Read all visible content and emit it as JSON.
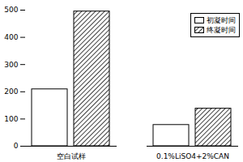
{
  "chart_data": {
    "type": "bar",
    "categories": [
      "空白试样",
      "0.1%LiSO4+2%CAN"
    ],
    "series": [
      {
        "name": "初凝时间",
        "color": "#ffffff",
        "values": [
          209,
          78
        ]
      },
      {
        "name": "终凝时间",
        "color": "#000000",
        "values": [
          495,
          138
        ]
      }
    ],
    "ylim": [
      0,
      500
    ],
    "yticks": [
      0,
      100,
      200,
      300,
      400,
      500
    ],
    "legend": "upper right",
    "grid": false
  }
}
